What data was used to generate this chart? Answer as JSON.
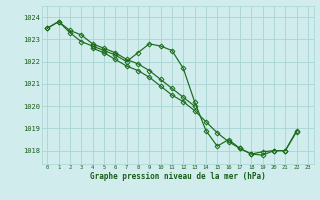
{
  "title": "Graphe pression niveau de la mer (hPa)",
  "bg_color": "#d0ecec",
  "grid_color": "#a8d4d4",
  "line_color": "#1a6b1a",
  "xlabel_color": "#1a5c1a",
  "hours": [
    0,
    1,
    2,
    3,
    4,
    5,
    6,
    7,
    8,
    9,
    10,
    11,
    12,
    13,
    14,
    15,
    16,
    17,
    18,
    19,
    20,
    21,
    22,
    23
  ],
  "s1": [
    1023.5,
    1023.8,
    1023.4,
    1023.2,
    1022.8,
    1022.6,
    1022.4,
    1022.1,
    1021.9,
    1021.6,
    1021.2,
    1020.8,
    1020.4,
    1020.0,
    null,
    null,
    null,
    null,
    null,
    null,
    null,
    null,
    null,
    null
  ],
  "s2": [
    1023.5,
    1023.8,
    1023.3,
    1022.9,
    1022.7,
    1022.5,
    1022.3,
    1022.0,
    1022.4,
    1022.8,
    1022.7,
    1022.5,
    1021.7,
    1020.2,
    1018.9,
    1018.2,
    1018.5,
    1018.1,
    1017.85,
    1017.95,
    1018.0,
    1018.0,
    1018.85,
    null
  ],
  "s3": [
    null,
    null,
    null,
    null,
    1022.6,
    1022.4,
    1022.1,
    1021.8,
    1021.6,
    1021.3,
    1020.9,
    1020.5,
    1020.2,
    1019.8,
    1019.3,
    1018.8,
    1018.4,
    1018.1,
    1017.85,
    1017.8,
    1018.0,
    1018.0,
    1018.9,
    null
  ],
  "ylim": [
    1017.4,
    1024.5
  ],
  "yticks": [
    1018,
    1019,
    1020,
    1021,
    1022,
    1023,
    1024
  ],
  "xlim": [
    -0.5,
    23.5
  ]
}
